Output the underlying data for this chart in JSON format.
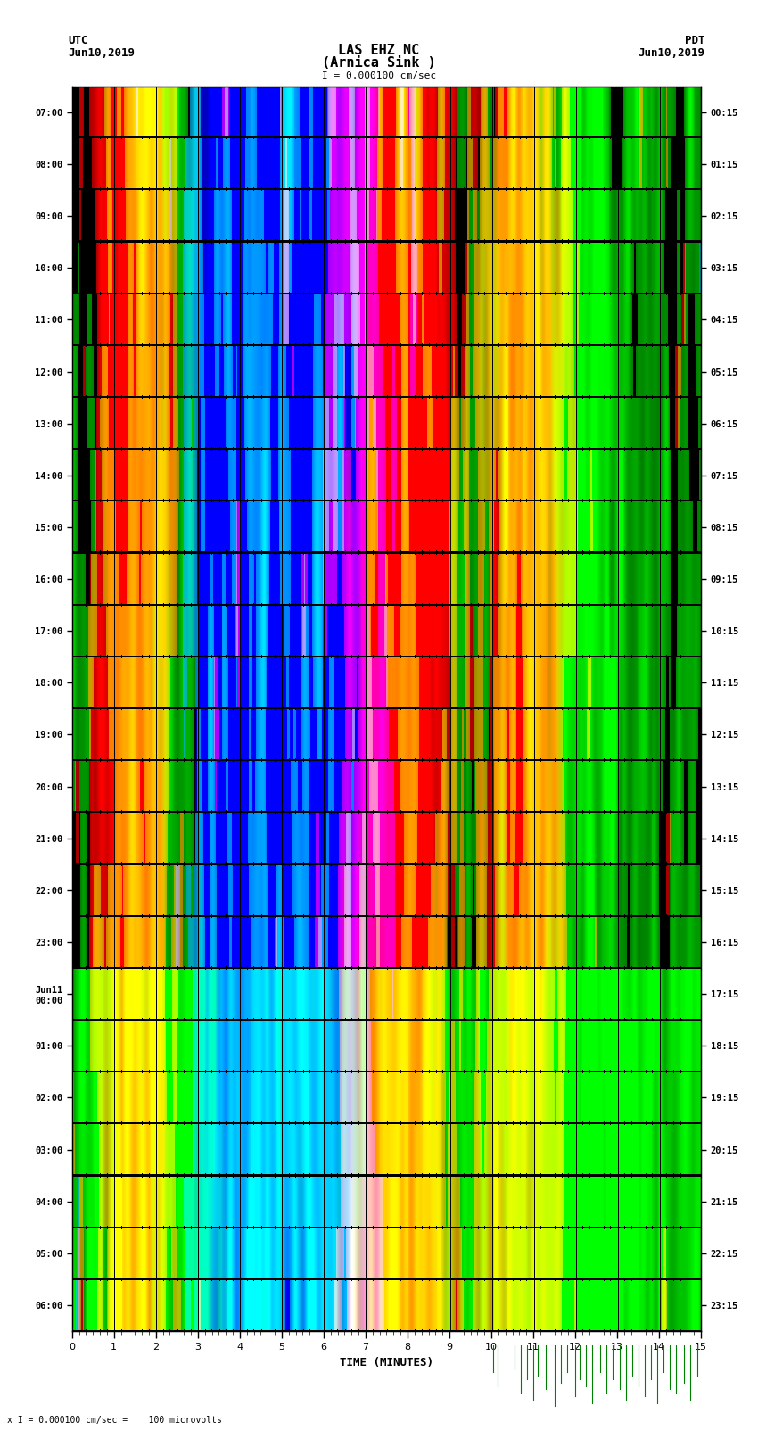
{
  "title_line1": "LAS EHZ NC",
  "title_line2": "(Arnica Sink )",
  "scale_label": "I = 0.000100 cm/sec",
  "left_label_top": "UTC",
  "left_label_date": "Jun10,2019",
  "right_label_top": "PDT",
  "right_label_date": "Jun10,2019",
  "bottom_label": "TIME (MINUTES)",
  "bottom_note": "x I = 0.000100 cm/sec =    100 microvolts",
  "utc_times": [
    "07:00",
    "08:00",
    "09:00",
    "10:00",
    "11:00",
    "12:00",
    "13:00",
    "14:00",
    "15:00",
    "16:00",
    "17:00",
    "18:00",
    "19:00",
    "20:00",
    "21:00",
    "22:00",
    "23:00",
    "Jun11\n00:00",
    "01:00",
    "02:00",
    "03:00",
    "04:00",
    "05:00",
    "06:00"
  ],
  "pdt_times": [
    "00:15",
    "01:15",
    "02:15",
    "03:15",
    "04:15",
    "05:15",
    "06:15",
    "07:15",
    "08:15",
    "09:15",
    "10:15",
    "11:15",
    "12:15",
    "13:15",
    "14:15",
    "15:15",
    "16:15",
    "17:15",
    "18:15",
    "19:15",
    "20:15",
    "21:15",
    "22:15",
    "23:15"
  ],
  "plot_bg": "#000000",
  "fig_bg": "#ffffff",
  "n_time_steps": 750,
  "n_rows": 24,
  "seed": 42,
  "spike_positions": [
    10.05,
    10.15,
    10.55,
    10.7,
    10.85,
    11.0,
    11.1,
    11.3,
    11.5,
    11.65,
    11.8,
    12.0,
    12.1,
    12.25,
    12.4,
    12.6,
    12.75,
    12.9,
    13.05,
    13.2,
    13.35,
    13.5,
    13.65,
    13.8,
    13.95,
    14.1,
    14.25,
    14.4,
    14.6,
    14.75,
    14.9
  ],
  "spike_heights": [
    -0.4,
    -0.6,
    -0.35,
    -0.7,
    -0.5,
    -0.8,
    -0.45,
    -0.65,
    -0.9,
    -0.55,
    -0.4,
    -0.75,
    -0.5,
    -0.6,
    -0.85,
    -0.4,
    -0.7,
    -0.5,
    -0.65,
    -0.8,
    -0.45,
    -0.6,
    -0.75,
    -0.5,
    -0.85,
    -0.4,
    -0.65,
    -0.7,
    -0.55,
    -0.8,
    -0.45
  ]
}
